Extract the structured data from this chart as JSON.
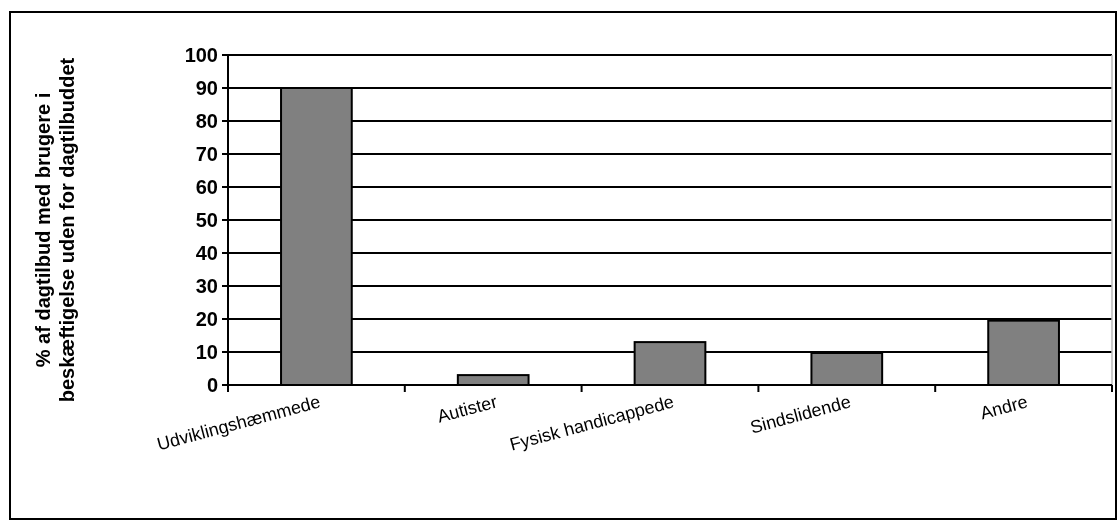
{
  "chart_data": {
    "type": "bar",
    "ylabel": "% af dagtilbud med brugere i beskæftigelse uden for dagtilbuddet",
    "categories": [
      "Udviklingshæmmede",
      "Autister",
      "Fysisk handicappede",
      "Sindslidende",
      "Andre"
    ],
    "values": [
      90,
      3,
      13,
      9.7,
      19.5
    ],
    "color": "#808080",
    "ylim": [
      0,
      100
    ],
    "yticks": [
      0,
      10,
      20,
      30,
      40,
      50,
      60,
      70,
      80,
      90,
      100
    ],
    "grid": "y"
  }
}
